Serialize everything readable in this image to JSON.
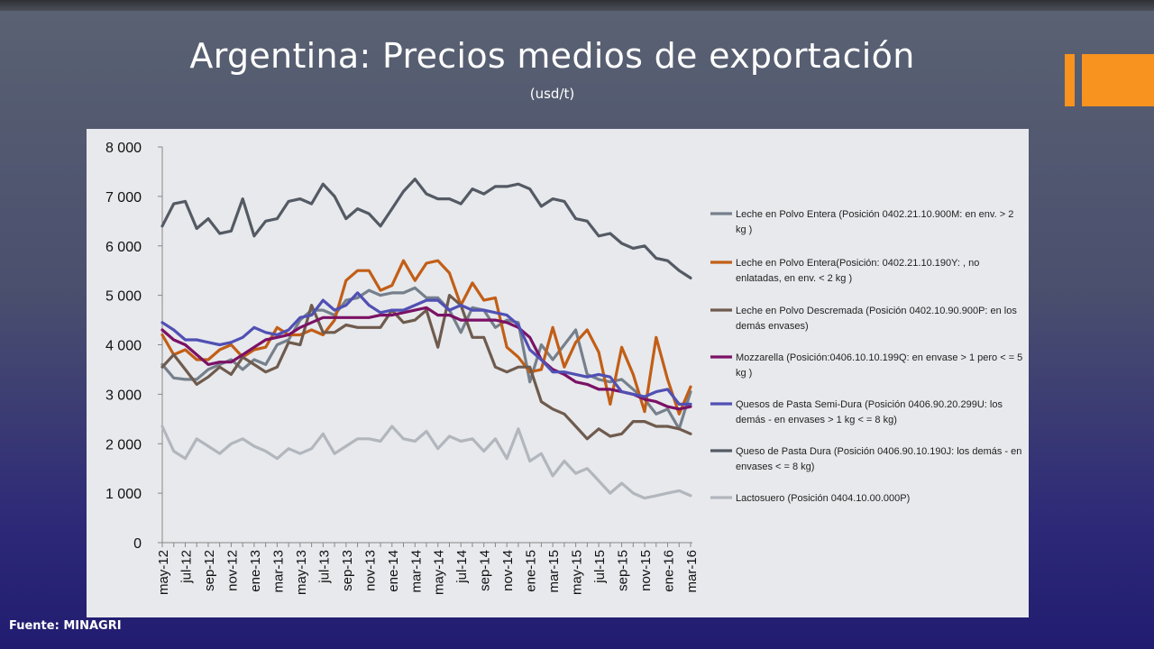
{
  "title": "Argentina: Precios medios de exportación",
  "subtitle": "(usd/t)",
  "source": "Fuente: MINAGRI",
  "colors": {
    "accent": "#f7931e",
    "plot_bg": "#e7e9ec"
  },
  "chart_data": {
    "type": "line",
    "ylim": [
      0,
      8000
    ],
    "yticks": [
      0,
      1000,
      2000,
      3000,
      4000,
      5000,
      6000,
      7000,
      8000
    ],
    "ytick_labels": [
      "0",
      "1 000",
      "2 000",
      "3 000",
      "4 000",
      "5 000",
      "6 000",
      "7 000",
      "8 000"
    ],
    "grid": false,
    "legend_position": "right",
    "categories": [
      "may-12",
      "jun-12",
      "jul-12",
      "ago-12",
      "sep-12",
      "oct-12",
      "nov-12",
      "dic-12",
      "ene-13",
      "feb-13",
      "mar-13",
      "abr-13",
      "may-13",
      "jun-13",
      "jul-13",
      "ago-13",
      "sep-13",
      "oct-13",
      "nov-13",
      "dic-13",
      "ene-14",
      "feb-14",
      "mar-14",
      "abr-14",
      "may-14",
      "jun-14",
      "jul-14",
      "ago-14",
      "sep-14",
      "oct-14",
      "nov-14",
      "dic-14",
      "ene-15",
      "feb-15",
      "mar-15",
      "abr-15",
      "may-15",
      "jun-15",
      "jul-15",
      "ago-15",
      "sep-15",
      "oct-15",
      "nov-15",
      "dic-15",
      "ene-16",
      "feb-16",
      "mar-16"
    ],
    "xtick_labels": [
      "may-12",
      "jul-12",
      "sep-12",
      "nov-12",
      "ene-13",
      "mar-13",
      "may-13",
      "jul-13",
      "sep-13",
      "nov-13",
      "ene-14",
      "mar-14",
      "may-14",
      "jul-14",
      "sep-14",
      "nov-14",
      "ene-15",
      "mar-15",
      "may-15",
      "jul-15",
      "sep-15",
      "nov-15",
      "ene-16",
      "mar-16"
    ],
    "series": [
      {
        "name": "Leche en Polvo Entera (Posición 0402.21.10.900M: en env. > 2 kg )",
        "color": "#76808c",
        "values": [
          3600,
          3330,
          3300,
          3300,
          3500,
          3600,
          3700,
          3500,
          3700,
          3600,
          4000,
          4100,
          4500,
          4700,
          4700,
          4600,
          4900,
          4950,
          5100,
          5000,
          5050,
          5050,
          5150,
          4950,
          4950,
          4700,
          4250,
          4750,
          4700,
          4350,
          4500,
          4450,
          3250,
          4000,
          3700,
          4000,
          4300,
          3400,
          3300,
          3250,
          3300,
          3100,
          2900,
          2600,
          2700,
          2300,
          3050
        ]
      },
      {
        "name": "Leche en Polvo Entera(Posición: 0402.21.10.190Y: , no enlatadas, en env. < 2 kg )",
        "color": "#c25e16",
        "values": [
          4200,
          3800,
          3900,
          3700,
          3700,
          3900,
          4000,
          3750,
          3900,
          3950,
          4350,
          4200,
          4200,
          4300,
          4200,
          4500,
          5300,
          5500,
          5500,
          5100,
          5200,
          5700,
          5300,
          5650,
          5700,
          5450,
          4800,
          5250,
          4900,
          4950,
          3950,
          3750,
          3450,
          3500,
          4350,
          3550,
          4050,
          4300,
          3850,
          2800,
          3950,
          3400,
          2650,
          4150,
          3300,
          2600,
          3150
        ]
      },
      {
        "name": "Leche en Polvo Descremada (Posición 0402.10.90.900P: en los demás envases)",
        "color": "#6f5b4e",
        "values": [
          3550,
          3800,
          3500,
          3200,
          3350,
          3550,
          3400,
          3750,
          3600,
          3450,
          3550,
          4050,
          4000,
          4800,
          4250,
          4250,
          4400,
          4350,
          4350,
          4350,
          4700,
          4450,
          4500,
          4700,
          3950,
          5000,
          4800,
          4150,
          4150,
          3550,
          3450,
          3550,
          3550,
          2850,
          2700,
          2600,
          2350,
          2100,
          2300,
          2150,
          2200,
          2450,
          2450,
          2350,
          2350,
          2300,
          2200
        ]
      },
      {
        "name": "Mozzarella (Posición:0406.10.10.199Q: en envase > 1 pero < = 5 kg )",
        "color": "#7b1165",
        "values": [
          4300,
          4100,
          4000,
          3800,
          3600,
          3650,
          3650,
          3800,
          3950,
          4100,
          4150,
          4200,
          4350,
          4450,
          4550,
          4550,
          4550,
          4550,
          4550,
          4600,
          4600,
          4650,
          4700,
          4750,
          4600,
          4600,
          4500,
          4500,
          4500,
          4500,
          4450,
          4350,
          4150,
          3700,
          3500,
          3400,
          3250,
          3200,
          3100,
          3100,
          3050,
          3000,
          2900,
          2850,
          2750,
          2700,
          2750
        ]
      },
      {
        "name": "Quesos de Pasta Semi-Dura (Posición 0406.90.20.299U: los demás - en envases > 1 kg < = 8 kg)",
        "color": "#5050b4",
        "values": [
          4450,
          4300,
          4100,
          4100,
          4050,
          4000,
          4050,
          4150,
          4350,
          4250,
          4200,
          4300,
          4550,
          4600,
          4900,
          4700,
          4800,
          5050,
          4800,
          4650,
          4700,
          4700,
          4800,
          4900,
          4900,
          4700,
          4800,
          4700,
          4700,
          4650,
          4600,
          4400,
          3900,
          3700,
          3450,
          3450,
          3400,
          3350,
          3400,
          3350,
          3050,
          3000,
          2950,
          3050,
          3100,
          2800,
          2800
        ]
      },
      {
        "name": "Queso de Pasta Dura (Posición 0406.90.10.190J: los demás - en envases < = 8 kg)",
        "color": "#545a64",
        "values": [
          6400,
          6850,
          6900,
          6350,
          6550,
          6250,
          6300,
          6950,
          6200,
          6500,
          6550,
          6900,
          6950,
          6850,
          7250,
          7000,
          6550,
          6750,
          6650,
          6400,
          6750,
          7100,
          7350,
          7050,
          6950,
          6950,
          6850,
          7150,
          7050,
          7200,
          7200,
          7250,
          7150,
          6800,
          6950,
          6900,
          6550,
          6500,
          6200,
          6250,
          6050,
          5950,
          6000,
          5750,
          5700,
          5500,
          5350
        ]
      },
      {
        "name": "Lactosuero (Posición 0404.10.00.000P)",
        "color": "#b2b6bd",
        "values": [
          2350,
          1850,
          1700,
          2100,
          1950,
          1800,
          2000,
          2100,
          1950,
          1850,
          1700,
          1900,
          1800,
          1900,
          2200,
          1800,
          1950,
          2100,
          2100,
          2050,
          2350,
          2100,
          2050,
          2250,
          1900,
          2150,
          2050,
          2100,
          1850,
          2100,
          1700,
          2300,
          1650,
          1800,
          1350,
          1650,
          1400,
          1500,
          1250,
          1000,
          1200,
          1000,
          900,
          950,
          1000,
          1050,
          950
        ]
      }
    ]
  }
}
